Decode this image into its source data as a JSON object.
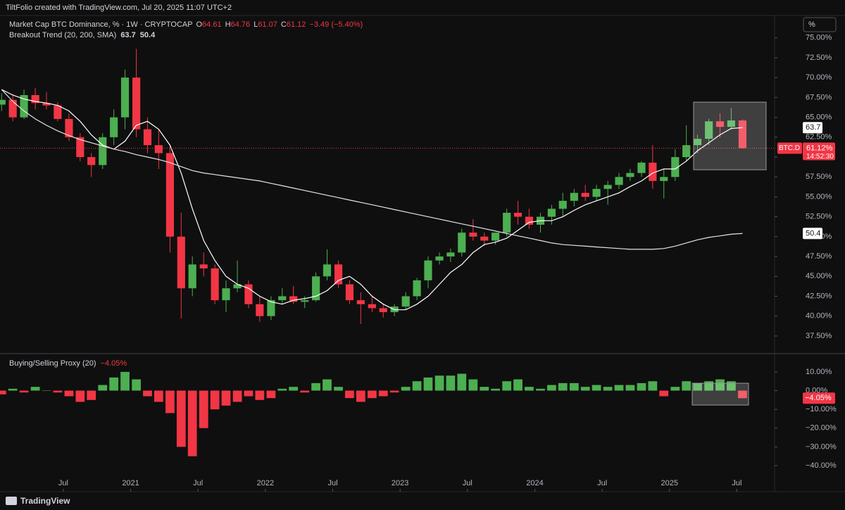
{
  "header": {
    "title": "TiltFolio created with TradingView.com, Jul 20, 2025 11:07 UTC+2"
  },
  "ui": {
    "scale_button": "%",
    "logo": "TradingView"
  },
  "chart_data": [
    {
      "type": "candlestick",
      "title": "Market Cap BTC Dominance, % · 1W · CRYPTOCAP",
      "ohlc_letters": [
        "O",
        "H",
        "L",
        "C"
      ],
      "change_label": "−3.49 (−5.40%)",
      "up_color": "#4caf50",
      "down_color": "#f23645",
      "x": [
        2020.042,
        2020.125,
        2020.208,
        2020.292,
        2020.375,
        2020.458,
        2020.542,
        2020.625,
        2020.708,
        2020.792,
        2020.875,
        2020.958,
        2021.042,
        2021.125,
        2021.208,
        2021.292,
        2021.375,
        2021.458,
        2021.542,
        2021.625,
        2021.708,
        2021.792,
        2021.875,
        2021.958,
        2022.042,
        2022.125,
        2022.208,
        2022.292,
        2022.375,
        2022.458,
        2022.542,
        2022.625,
        2022.708,
        2022.792,
        2022.875,
        2022.958,
        2023.042,
        2023.125,
        2023.208,
        2023.292,
        2023.375,
        2023.458,
        2023.542,
        2023.625,
        2023.708,
        2023.792,
        2023.875,
        2023.958,
        2024.042,
        2024.125,
        2024.208,
        2024.292,
        2024.375,
        2024.458,
        2024.542,
        2024.625,
        2024.708,
        2024.792,
        2024.875,
        2024.958,
        2025.042,
        2025.125,
        2025.208,
        2025.292,
        2025.375,
        2025.458,
        2025.542
      ],
      "open": [
        66.6,
        67.2,
        65.0,
        67.8,
        66.8,
        66.5,
        64.8,
        62.5,
        60.0,
        59.0,
        62.5,
        65.0,
        70.0,
        63.5,
        61.5,
        60.5,
        50.0,
        43.5,
        46.5,
        46.0,
        42.0,
        43.5,
        44.0,
        41.5,
        40.0,
        42.0,
        42.5,
        41.8,
        42.0,
        45.0,
        46.5,
        44.0,
        42.0,
        41.5,
        41.0,
        40.5,
        41.2,
        42.5,
        44.5,
        47.0,
        47.5,
        48.0,
        50.5,
        50.0,
        49.5,
        50.5,
        53.0,
        52.5,
        51.5,
        52.5,
        53.5,
        54.5,
        55.5,
        55.0,
        56.0,
        56.5,
        57.5,
        58.0,
        59.3,
        57.0,
        57.5,
        60.0,
        61.5,
        62.3,
        64.5,
        63.8,
        64.61
      ],
      "high": [
        68.0,
        67.9,
        68.5,
        68.7,
        68.2,
        66.9,
        65.5,
        63.0,
        60.5,
        63.0,
        66.0,
        71.0,
        73.6,
        65.0,
        63.5,
        61.5,
        53.0,
        47.5,
        48.0,
        46.5,
        44.5,
        47.0,
        44.5,
        42.5,
        42.5,
        43.5,
        43.8,
        42.5,
        45.5,
        48.4,
        47.0,
        44.5,
        43.0,
        42.5,
        41.5,
        41.5,
        43.0,
        44.8,
        47.5,
        48.0,
        48.5,
        51.0,
        52.2,
        50.5,
        50.5,
        53.5,
        54.5,
        53.5,
        53.0,
        54.0,
        55.5,
        56.0,
        56.5,
        56.5,
        57.0,
        58.0,
        58.5,
        59.5,
        61.5,
        58.5,
        61.0,
        64.0,
        62.8,
        64.8,
        65.5,
        66.2,
        64.76
      ],
      "low": [
        65.8,
        64.5,
        64.8,
        66.0,
        66.0,
        64.5,
        62.0,
        59.5,
        57.5,
        58.5,
        61.5,
        63.5,
        62.5,
        60.5,
        58.5,
        48.0,
        39.7,
        42.5,
        45.0,
        41.5,
        40.5,
        43.0,
        41.0,
        39.3,
        39.5,
        41.5,
        41.5,
        41.0,
        41.8,
        44.5,
        43.5,
        41.5,
        39.0,
        40.5,
        39.8,
        40.0,
        40.8,
        42.0,
        43.5,
        46.5,
        46.8,
        47.5,
        49.5,
        48.8,
        49.0,
        50.0,
        51.5,
        51.0,
        50.5,
        51.5,
        52.5,
        53.8,
        54.5,
        54.5,
        54.0,
        56.0,
        57.0,
        57.5,
        56.0,
        54.8,
        57.0,
        59.5,
        60.5,
        61.5,
        62.5,
        63.5,
        61.07
      ],
      "close": [
        67.2,
        65.0,
        67.8,
        66.8,
        66.5,
        64.8,
        62.5,
        60.0,
        59.0,
        62.5,
        65.0,
        70.0,
        63.5,
        61.5,
        60.5,
        50.0,
        43.5,
        46.5,
        46.0,
        42.0,
        43.5,
        44.0,
        41.5,
        40.0,
        42.0,
        42.5,
        41.8,
        42.0,
        45.0,
        46.5,
        44.0,
        42.0,
        41.5,
        41.0,
        40.5,
        41.2,
        42.5,
        44.5,
        47.0,
        47.5,
        48.0,
        50.5,
        50.0,
        49.5,
        50.5,
        53.0,
        52.5,
        51.5,
        52.5,
        53.5,
        54.5,
        55.5,
        55.0,
        56.0,
        56.5,
        57.5,
        58.0,
        59.3,
        57.0,
        57.5,
        60.0,
        61.5,
        62.3,
        64.5,
        63.8,
        64.61,
        61.12
      ],
      "price_badge": {
        "symbol": "BTC.D",
        "label": "61.12%",
        "countdown": "14:52:30"
      },
      "indicator": {
        "name": "Breakout Trend (20, 200, SMA)",
        "lines": [
          {
            "color": "#ffffff",
            "values": [
              68.5,
              67.8,
              67.3,
              67.0,
              66.8,
              66.5,
              65.8,
              64.5,
              62.8,
              61.5,
              61.0,
              62.0,
              64.0,
              64.5,
              63.5,
              61.5,
              58.0,
              53.5,
              49.5,
              47.0,
              45.0,
              44.0,
              43.5,
              42.5,
              41.8,
              41.5,
              42.0,
              42.2,
              42.5,
              43.2,
              44.5,
              45.0,
              44.0,
              42.5,
              41.5,
              40.8,
              40.8,
              41.5,
              42.5,
              44.0,
              45.5,
              46.5,
              48.0,
              49.0,
              49.3,
              49.8,
              50.8,
              51.8,
              52.0,
              52.0,
              52.5,
              53.3,
              54.0,
              54.5,
              55.0,
              55.5,
              56.3,
              57.0,
              58.0,
              58.5,
              58.5,
              59.5,
              60.8,
              61.8,
              62.8,
              63.6,
              63.7
            ]
          },
          {
            "color": "#e6e6e6",
            "values": [
              68.5,
              67.0,
              65.8,
              64.8,
              64.0,
              63.3,
              62.7,
              62.2,
              61.8,
              61.4,
              61.0,
              60.7,
              60.3,
              60.0,
              59.7,
              59.3,
              58.8,
              58.3,
              58.0,
              57.8,
              57.6,
              57.4,
              57.2,
              57.0,
              56.7,
              56.4,
              56.1,
              55.8,
              55.5,
              55.2,
              54.9,
              54.6,
              54.3,
              54.0,
              53.7,
              53.4,
              53.1,
              52.8,
              52.5,
              52.2,
              51.9,
              51.6,
              51.3,
              51.0,
              50.7,
              50.4,
              50.1,
              49.8,
              49.5,
              49.2,
              49.0,
              48.9,
              48.8,
              48.7,
              48.6,
              48.5,
              48.4,
              48.4,
              48.4,
              48.5,
              48.8,
              49.2,
              49.6,
              49.9,
              50.1,
              50.3,
              50.4
            ]
          }
        ]
      },
      "xlim": [
        2020.03,
        2025.78
      ],
      "ylim": [
        35.46,
        77.1
      ],
      "yticks": [
        {
          "value": 37.5,
          "label": "37.50%"
        },
        {
          "value": 40,
          "label": "40.00%"
        },
        {
          "value": 42.5,
          "label": "42.50%"
        },
        {
          "value": 45,
          "label": "45.00%"
        },
        {
          "value": 47.5,
          "label": "47.50%"
        },
        {
          "value": 50,
          "label": "50.00%"
        },
        {
          "value": 52.5,
          "label": "52.50%"
        },
        {
          "value": 55,
          "label": "55.00%"
        },
        {
          "value": 57.5,
          "label": "57.50%"
        },
        {
          "value": 60,
          "label": "60.00%"
        },
        {
          "value": 62.5,
          "label": "62.50%"
        },
        {
          "value": 65,
          "label": "65.00%"
        },
        {
          "value": 67.5,
          "label": "67.50%"
        },
        {
          "value": 70,
          "label": "70.00%"
        },
        {
          "value": 72.5,
          "label": "72.50%"
        },
        {
          "value": 75,
          "label": "75.00%"
        }
      ]
    },
    {
      "type": "bar",
      "title": "Buying/Selling Proxy (20)",
      "last_value_label": "−4.05%",
      "up_color": "#4caf50",
      "down_color": "#f23645",
      "x": [
        2020.042,
        2020.125,
        2020.208,
        2020.292,
        2020.375,
        2020.458,
        2020.542,
        2020.625,
        2020.708,
        2020.792,
        2020.875,
        2020.958,
        2021.042,
        2021.125,
        2021.208,
        2021.292,
        2021.375,
        2021.458,
        2021.542,
        2021.625,
        2021.708,
        2021.792,
        2021.875,
        2021.958,
        2022.042,
        2022.125,
        2022.208,
        2022.292,
        2022.375,
        2022.458,
        2022.542,
        2022.625,
        2022.708,
        2022.792,
        2022.875,
        2022.958,
        2023.042,
        2023.125,
        2023.208,
        2023.292,
        2023.375,
        2023.458,
        2023.542,
        2023.625,
        2023.708,
        2023.792,
        2023.875,
        2023.958,
        2024.042,
        2024.125,
        2024.208,
        2024.292,
        2024.375,
        2024.458,
        2024.542,
        2024.625,
        2024.708,
        2024.792,
        2024.875,
        2024.958,
        2025.042,
        2025.125,
        2025.208,
        2025.292,
        2025.375,
        2025.458,
        2025.542
      ],
      "values": [
        -2,
        1,
        -1,
        2,
        0,
        -1,
        -3,
        -6,
        -5,
        3,
        7,
        10,
        6,
        -3,
        -6,
        -12,
        -30,
        -35,
        -20,
        -10,
        -8,
        -6,
        -3,
        -5,
        -4,
        1,
        2,
        -1,
        4,
        6,
        2,
        -4,
        -6,
        -4,
        -3,
        -1,
        2,
        5,
        7,
        8,
        8,
        9,
        6,
        2,
        1,
        5,
        6,
        2,
        1,
        3,
        4,
        4,
        2,
        3,
        2,
        3,
        3,
        4,
        5,
        -3,
        2,
        5,
        4,
        5,
        6,
        5,
        -4.05
      ],
      "xlim": [
        2020.03,
        2025.78
      ],
      "ylim": [
        -50.9,
        18.6
      ],
      "yticks": [
        {
          "value": -40,
          "label": "−40.00%"
        },
        {
          "value": -30,
          "label": "−30.00%"
        },
        {
          "value": -20,
          "label": "−20.00%"
        },
        {
          "value": -10,
          "label": "−10.00%"
        },
        {
          "value": 0,
          "label": "0.00%"
        },
        {
          "value": 10,
          "label": "10.00%"
        }
      ],
      "xticks": [
        {
          "value": 2020.5,
          "label": "Jul"
        },
        {
          "value": 2021,
          "label": "2021"
        },
        {
          "value": 2021.5,
          "label": "Jul"
        },
        {
          "value": 2022,
          "label": "2022"
        },
        {
          "value": 2022.5,
          "label": "Jul"
        },
        {
          "value": 2023,
          "label": "2023"
        },
        {
          "value": 2023.5,
          "label": "Jul"
        },
        {
          "value": 2024,
          "label": "2024"
        },
        {
          "value": 2024.5,
          "label": "Jul"
        },
        {
          "value": 2025,
          "label": "2025"
        },
        {
          "value": 2025.5,
          "label": "Jul"
        }
      ]
    }
  ]
}
